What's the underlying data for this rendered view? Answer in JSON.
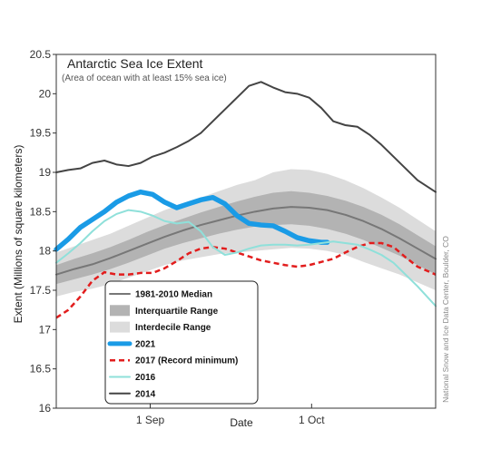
{
  "chart_data": {
    "type": "line",
    "title": "Antarctic Sea Ice Extent",
    "subtitle": "(Area of ocean with at least 15% sea ice)",
    "xlabel": "Date",
    "ylabel": "Extent (Millions of square kilometers)",
    "ylim": [
      16,
      20.5
    ],
    "xlim": [
      0,
      63
    ],
    "x_ticks": [
      {
        "x": 15.6,
        "label": "1 Sep"
      },
      {
        "x": 42.4,
        "label": "1 Oct"
      }
    ],
    "y_ticks": [
      16,
      16.5,
      17,
      17.5,
      18,
      18.5,
      19,
      19.5,
      20,
      20.5
    ],
    "grid": false,
    "legend_position": "bottom-left",
    "credit": "National Snow and Ice Data Center, Boulder, CO",
    "bands": [
      {
        "name": "Interdecile Range",
        "color": "#dcdcdc",
        "x": [
          0,
          3,
          6,
          9,
          12,
          15,
          18,
          21,
          24,
          27,
          30,
          33,
          36,
          39,
          42,
          45,
          48,
          51,
          54,
          57,
          60,
          63
        ],
        "upper": [
          17.98,
          18.06,
          18.14,
          18.22,
          18.32,
          18.42,
          18.52,
          18.6,
          18.68,
          18.76,
          18.84,
          18.9,
          19.0,
          19.04,
          19.03,
          18.98,
          18.9,
          18.8,
          18.68,
          18.55,
          18.4,
          18.25
        ],
        "lower": [
          17.42,
          17.48,
          17.52,
          17.58,
          17.66,
          17.74,
          17.82,
          17.88,
          17.92,
          17.96,
          17.98,
          18.0,
          18.02,
          18.04,
          18.03,
          18.0,
          17.95,
          17.86,
          17.78,
          17.7,
          17.6,
          17.5
        ]
      },
      {
        "name": "Interquartile Range",
        "color": "#b3b3b3",
        "x": [
          0,
          3,
          6,
          9,
          12,
          15,
          18,
          21,
          24,
          27,
          30,
          33,
          36,
          39,
          42,
          45,
          48,
          51,
          54,
          57,
          60,
          63
        ],
        "upper": [
          17.82,
          17.9,
          17.97,
          18.05,
          18.14,
          18.24,
          18.33,
          18.41,
          18.49,
          18.56,
          18.63,
          18.69,
          18.74,
          18.76,
          18.74,
          18.7,
          18.64,
          18.56,
          18.46,
          18.34,
          18.2,
          18.06
        ],
        "lower": [
          17.58,
          17.64,
          17.7,
          17.77,
          17.85,
          17.94,
          18.03,
          18.1,
          18.16,
          18.22,
          18.27,
          18.31,
          18.33,
          18.34,
          18.32,
          18.28,
          18.22,
          18.14,
          18.04,
          17.94,
          17.82,
          17.7
        ]
      }
    ],
    "series": [
      {
        "name": "1981-2010 Median",
        "color": "#777777",
        "width": 2,
        "dash": "",
        "x": [
          0,
          3,
          6,
          9,
          12,
          15,
          18,
          21,
          24,
          27,
          30,
          33,
          36,
          39,
          42,
          45,
          48,
          51,
          54,
          57,
          60,
          63
        ],
        "values": [
          17.7,
          17.77,
          17.83,
          17.91,
          18.0,
          18.09,
          18.18,
          18.26,
          18.33,
          18.39,
          18.45,
          18.5,
          18.54,
          18.56,
          18.55,
          18.52,
          18.46,
          18.38,
          18.28,
          18.16,
          18.03,
          17.9
        ]
      },
      {
        "name": "2021",
        "color": "#1a9be6",
        "width": 5.5,
        "dash": "",
        "x": [
          0,
          2,
          4,
          6,
          8,
          10,
          12,
          14,
          16,
          18,
          20,
          22,
          24,
          26,
          28,
          30,
          32,
          34,
          36,
          38,
          40,
          42,
          44,
          45
        ],
        "values": [
          18.02,
          18.15,
          18.3,
          18.4,
          18.5,
          18.62,
          18.7,
          18.75,
          18.72,
          18.62,
          18.55,
          18.6,
          18.65,
          18.68,
          18.6,
          18.45,
          18.35,
          18.33,
          18.32,
          18.25,
          18.17,
          18.13,
          18.11,
          18.11
        ]
      },
      {
        "name": "2017 (Record minimum)",
        "color": "#e21d1d",
        "width": 2.5,
        "dash": "6,4",
        "x": [
          0,
          2,
          4,
          6,
          8,
          10,
          12,
          14,
          16,
          18,
          20,
          22,
          24,
          26,
          28,
          30,
          32,
          34,
          36,
          38,
          40,
          42,
          44,
          46,
          48,
          50,
          52,
          54,
          56,
          58,
          60,
          63
        ],
        "values": [
          17.15,
          17.25,
          17.42,
          17.62,
          17.73,
          17.7,
          17.7,
          17.72,
          17.72,
          17.78,
          17.87,
          17.97,
          18.03,
          18.05,
          18.03,
          17.98,
          17.93,
          17.88,
          17.85,
          17.82,
          17.8,
          17.82,
          17.86,
          17.9,
          17.98,
          18.05,
          18.1,
          18.1,
          18.05,
          17.92,
          17.8,
          17.7
        ]
      },
      {
        "name": "2016",
        "color": "#8fe0da",
        "width": 2,
        "dash": "",
        "x": [
          0,
          2,
          4,
          6,
          8,
          10,
          12,
          14,
          16,
          18,
          20,
          22,
          24,
          26,
          28,
          30,
          32,
          34,
          36,
          38,
          40,
          42,
          44,
          46,
          48,
          50,
          52,
          54,
          56,
          58,
          60,
          63
        ],
        "values": [
          17.85,
          17.97,
          18.1,
          18.25,
          18.38,
          18.47,
          18.52,
          18.5,
          18.45,
          18.38,
          18.35,
          18.37,
          18.25,
          18.05,
          17.95,
          17.98,
          18.03,
          18.07,
          18.08,
          18.08,
          18.07,
          18.08,
          18.1,
          18.12,
          18.1,
          18.08,
          18.02,
          17.95,
          17.85,
          17.7,
          17.55,
          17.3
        ]
      },
      {
        "name": "2014",
        "color": "#444444",
        "width": 2,
        "dash": "",
        "x": [
          0,
          2,
          4,
          6,
          8,
          10,
          12,
          14,
          16,
          18,
          20,
          22,
          24,
          26,
          28,
          30,
          32,
          34,
          36,
          38,
          40,
          42,
          44,
          46,
          48,
          50,
          52,
          54,
          56,
          58,
          60,
          63
        ],
        "values": [
          19.0,
          19.03,
          19.05,
          19.12,
          19.15,
          19.1,
          19.08,
          19.12,
          19.2,
          19.25,
          19.32,
          19.4,
          19.5,
          19.65,
          19.8,
          19.95,
          20.1,
          20.15,
          20.08,
          20.02,
          20.0,
          19.95,
          19.82,
          19.65,
          19.6,
          19.58,
          19.48,
          19.35,
          19.2,
          19.05,
          18.9,
          18.75
        ]
      }
    ],
    "legend": [
      {
        "label": "1981-2010 Median",
        "kind": "line",
        "color": "#777777",
        "width": 2,
        "dash": ""
      },
      {
        "label": "Interquartile Range",
        "kind": "box",
        "color": "#b3b3b3"
      },
      {
        "label": "Interdecile Range",
        "kind": "box",
        "color": "#dcdcdc"
      },
      {
        "label": "2021",
        "kind": "line",
        "color": "#1a9be6",
        "width": 5,
        "dash": ""
      },
      {
        "label": "2017 (Record minimum)",
        "kind": "line",
        "color": "#e21d1d",
        "width": 2.5,
        "dash": "6,4"
      },
      {
        "label": "2016",
        "kind": "line",
        "color": "#8fe0da",
        "width": 2,
        "dash": ""
      },
      {
        "label": "2014",
        "kind": "line",
        "color": "#444444",
        "width": 2,
        "dash": ""
      }
    ]
  }
}
